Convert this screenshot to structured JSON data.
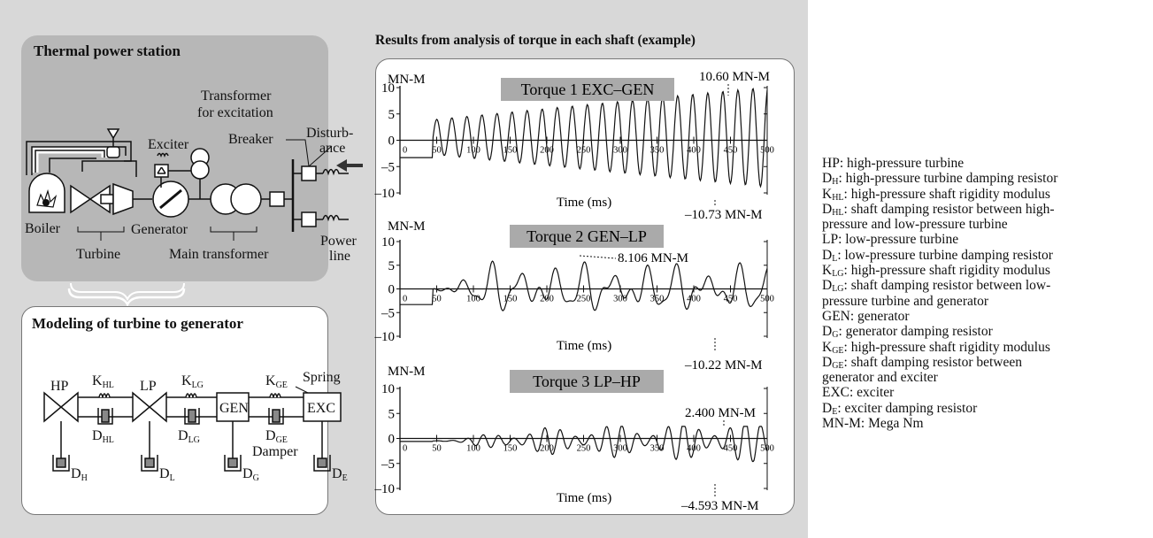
{
  "station": {
    "title": "Thermal power station",
    "labels": {
      "boiler": "Boiler",
      "turbine": "Turbine",
      "generator": "Generator",
      "exciter": "Exciter",
      "transformer_excitation_1": "Transformer",
      "transformer_excitation_2": "for excitation",
      "breaker": "Breaker",
      "disturbance_1": "Disturb-",
      "disturbance_2": "ance",
      "main_transformer": "Main transformer",
      "power_line_1": "Power",
      "power_line_2": "line"
    }
  },
  "model": {
    "title": "Modeling of turbine to generator",
    "blocks": {
      "hp": "HP",
      "lp": "LP",
      "gen": "GEN",
      "exc": "EXC"
    },
    "springs": {
      "khl": "K",
      "khl_sub": "HL",
      "klg": "K",
      "klg_sub": "LG",
      "kge": "K",
      "kge_sub": "GE"
    },
    "dampers": {
      "dhl": "D",
      "dhl_sub": "HL",
      "dlg": "D",
      "dlg_sub": "LG",
      "dge": "D",
      "dge_sub": "GE"
    },
    "grounds": {
      "dh": "D",
      "dh_sub": "H",
      "dl": "D",
      "dl_sub": "L",
      "dg": "D",
      "dg_sub": "G",
      "de": "D",
      "de_sub": "E"
    },
    "spring_label": "Spring",
    "damper_label": "Damper"
  },
  "results": {
    "title": "Results from analysis of torque in each shaft (example)"
  },
  "chart_data": [
    {
      "type": "line",
      "title": "Torque 1 EXC–GEN",
      "ylabel": "MN-M",
      "xlabel": "Time (ms)",
      "ylim": [
        -10,
        10
      ],
      "yticks": [
        "10",
        "5",
        "0",
        "–5",
        "–10"
      ],
      "xticks": [
        "0",
        "50",
        "100",
        "150",
        "200",
        "250",
        "300",
        "350",
        "400",
        "450",
        "500"
      ],
      "max_label": "10.60 MN-M",
      "min_label": "–10.73 MN-M",
      "max": 10.6,
      "min": -10.73
    },
    {
      "type": "line",
      "title": "Torque 2 GEN–LP",
      "ylabel": "MN-M",
      "xlabel": "Time (ms)",
      "ylim": [
        -10,
        10
      ],
      "yticks": [
        "10",
        "5",
        "0",
        "–5",
        "–10"
      ],
      "xticks": [
        "0",
        "50",
        "100",
        "150",
        "200",
        "250",
        "300",
        "350",
        "400",
        "450",
        "500"
      ],
      "max_label": "8.106 MN-M",
      "min_label": "–10.22 MN-M",
      "max": 8.106,
      "min": -10.22
    },
    {
      "type": "line",
      "title": "Torque 3 LP–HP",
      "ylabel": "MN-M",
      "xlabel": "Time (ms)",
      "ylim": [
        -10,
        10
      ],
      "yticks": [
        "10",
        "5",
        "0",
        "–5",
        "–10"
      ],
      "xticks": [
        "0",
        "50",
        "100",
        "150",
        "200",
        "250",
        "300",
        "350",
        "400",
        "450",
        "500"
      ],
      "max_label": "2.400 MN-M",
      "min_label": "–4.593 MN-M",
      "max": 2.4,
      "min": -4.593
    }
  ],
  "legend": [
    {
      "a": "HP: high-pressure turbine"
    },
    {
      "a": "D",
      "s": "H",
      "b": ": high-pressure turbine damping resistor"
    },
    {
      "a": "K",
      "s": "HL",
      "b": ": high-pressure shaft rigidity modulus"
    },
    {
      "a": "D",
      "s": "HL",
      "b": ": shaft damping resistor between high-"
    },
    {
      "a": "pressure and low-pressure turbine"
    },
    {
      "a": "LP: low-pressure turbine"
    },
    {
      "a": "D",
      "s": "L",
      "b": ": low-pressure turbine damping resistor"
    },
    {
      "a": "K",
      "s": "LG",
      "b": ": high-pressure shaft rigidity modulus"
    },
    {
      "a": "D",
      "s": "LG",
      "b": ": shaft damping resistor between low-"
    },
    {
      "a": "pressure turbine and generator"
    },
    {
      "a": "GEN: generator"
    },
    {
      "a": "D",
      "s": "G",
      "b": ": generator damping resistor"
    },
    {
      "a": "K",
      "s": "GE",
      "b": ": high-pressure shaft rigidity modulus"
    },
    {
      "a": "D",
      "s": "GE",
      "b": ":  shaft  damping  resistor  between"
    },
    {
      "a": "generator and exciter"
    },
    {
      "a": "EXC: exciter"
    },
    {
      "a": "D",
      "s": "E",
      "b": ": exciter damping resistor"
    },
    {
      "a": "MN-M: Mega Nm"
    }
  ]
}
